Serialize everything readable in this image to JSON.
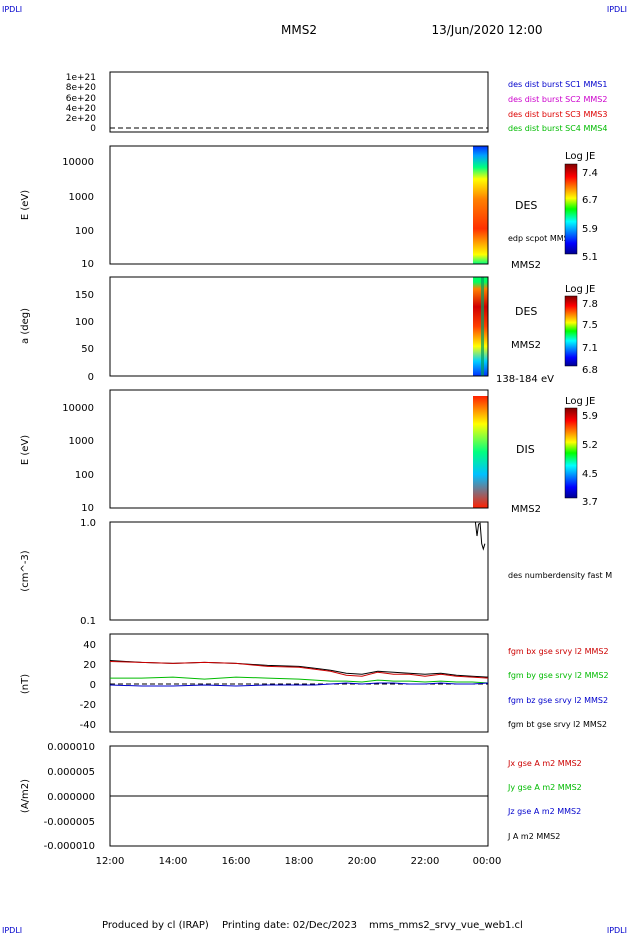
{
  "corner_labels": {
    "tl": "IPDLI",
    "tr": "IPDLI",
    "bl": "IPDLI",
    "br": "IPDLI"
  },
  "header": {
    "title": "MMS2",
    "datetime": "13/Jun/2020 12:00"
  },
  "footer": {
    "produced_by": "Produced by cl (IRAP)",
    "printing_date": "Printing date: 02/Dec/2023",
    "filename": "mms_mms2_srvy_vue_web1.cl"
  },
  "colors": {
    "mms1": "#0000cc",
    "mms2": "#cc00cc",
    "mms3": "#dd0000",
    "mms4": "#00bb00",
    "bx": "#cc0000",
    "by": "#00bb00",
    "bz": "#0000cc",
    "bt": "#000000",
    "corner": "#0000cc"
  },
  "time_axis": [
    "12:00",
    "14:00",
    "16:00",
    "18:00",
    "20:00",
    "22:00",
    "00:00"
  ],
  "panels": {
    "burst": {
      "yticks": [
        "1e+21",
        "8e+20",
        "6e+20",
        "4e+20",
        "2e+20",
        "0"
      ],
      "legend": [
        "des dist burst SC1 MMS1",
        "des dist burst SC2 MMS2",
        "des dist burst SC3 MMS3",
        "des dist burst SC4 MMS4"
      ]
    },
    "des_energy": {
      "ylabel": "E (eV)",
      "yticks": [
        "10000",
        "1000",
        "100",
        "10"
      ],
      "label": "DES",
      "label2": "edp scpot MMS2",
      "label3": "MMS2",
      "colorbar": {
        "title": "Log JE",
        "ticks": [
          "7.4",
          "6.7",
          "5.9",
          "5.1"
        ]
      }
    },
    "des_pitch": {
      "ylabel": "a (deg)",
      "yticks": [
        "150",
        "100",
        "50",
        "0"
      ],
      "label": "DES",
      "label2": "MMS2",
      "label3": "138-184 eV",
      "colorbar": {
        "title": "Log JE",
        "ticks": [
          "7.8",
          "7.5",
          "7.1",
          "6.8"
        ]
      }
    },
    "dis_energy": {
      "ylabel": "E (eV)",
      "yticks": [
        "10000",
        "1000",
        "100",
        "10"
      ],
      "label": "DIS",
      "label2": "MMS2",
      "colorbar": {
        "title": "Log JE",
        "ticks": [
          "5.9",
          "5.2",
          "4.5",
          "3.7"
        ]
      }
    },
    "density": {
      "ylabel": "(cm^-3)",
      "yticks": [
        "1.0",
        "0.1"
      ],
      "legend": "des numberdensity fast M"
    },
    "bfield": {
      "ylabel": "(nT)",
      "yticks": [
        "40",
        "20",
        "0",
        "-20",
        "-40"
      ],
      "legend": [
        "fgm bx gse srvy l2 MMS2",
        "fgm by gse srvy l2 MMS2",
        "fgm bz gse srvy l2 MMS2",
        "fgm bt gse srvy l2 MMS2"
      ]
    },
    "current": {
      "ylabel": "(A/m2)",
      "yticks": [
        "0.000010",
        "0.000005",
        "0.000000",
        "-0.000005",
        "-0.000010"
      ],
      "legend": [
        "Jx gse A m2 MMS2",
        "Jy gse A m2 MMS2",
        "Jz gse A m2 MMS2",
        "J A m2 MMS2"
      ]
    }
  },
  "chart_data": {
    "type": "line",
    "x_unit": "hours since 12:00 UT",
    "xlim": [
      0,
      12
    ],
    "series": [
      {
        "name": "fgm bt gse srvy l2 MMS2",
        "x": [
          0,
          1,
          2,
          3,
          4,
          5,
          6,
          6.5,
          7,
          7.5,
          8,
          8.5,
          9,
          9.5,
          10,
          10.5,
          11,
          11.5,
          12
        ],
        "y": [
          24,
          22,
          21,
          22,
          21,
          19,
          18,
          16,
          14,
          11,
          10,
          13,
          12,
          11,
          10,
          11,
          9,
          8,
          7
        ]
      },
      {
        "name": "fgm bx gse srvy l2 MMS2",
        "x": [
          0,
          1,
          2,
          3,
          4,
          5,
          6,
          6.5,
          7,
          7.5,
          8,
          8.5,
          9,
          9.5,
          10,
          10.5,
          11,
          11.5,
          12
        ],
        "y": [
          23,
          22,
          21,
          22,
          21,
          18,
          17,
          15,
          13,
          9,
          8,
          12,
          10,
          10,
          8,
          10,
          8,
          7,
          6
        ]
      },
      {
        "name": "fgm by gse srvy l2 MMS2",
        "x": [
          0,
          1,
          2,
          3,
          4,
          5,
          6,
          6.5,
          7,
          7.5,
          8,
          8.5,
          9,
          9.5,
          10,
          10.5,
          11,
          11.5,
          12
        ],
        "y": [
          6,
          6,
          7,
          5,
          7,
          6,
          5,
          4,
          3,
          3,
          2,
          4,
          3,
          3,
          2,
          3,
          2,
          2,
          1
        ]
      },
      {
        "name": "fgm bz gse srvy l2 MMS2",
        "x": [
          0,
          1,
          2,
          3,
          4,
          5,
          6,
          6.5,
          7,
          7.5,
          8,
          8.5,
          9,
          9.5,
          10,
          10.5,
          11,
          11.5,
          12
        ],
        "y": [
          -1,
          -2,
          -2,
          -1,
          -2,
          -1,
          -1,
          -1,
          0,
          1,
          0,
          1,
          1,
          0,
          0,
          1,
          0,
          0,
          1
        ]
      },
      {
        "name": "des numberdensity fast M",
        "x": [
          11.6,
          11.65,
          11.7,
          11.75,
          11.8,
          11.85,
          11.9
        ],
        "y": [
          1.0,
          0.72,
          0.95,
          0.97,
          0.6,
          0.53,
          0.6
        ]
      },
      {
        "name": "J A m2 MMS2",
        "x": [
          0,
          3,
          6,
          9,
          12
        ],
        "y": [
          0,
          0,
          0,
          0,
          0
        ]
      }
    ]
  }
}
